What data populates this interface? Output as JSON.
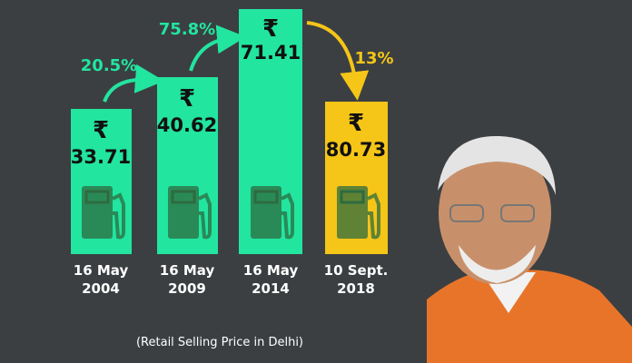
{
  "currency": "₹",
  "items": [
    {
      "price": "33.71",
      "date_line1": "16 May",
      "date_line2": "2004"
    },
    {
      "price": "40.62",
      "date_line1": "16 May",
      "date_line2": "2009"
    },
    {
      "price": "71.41",
      "date_line1": "16 May",
      "date_line2": "2014"
    },
    {
      "price": "80.73",
      "date_line1": "10 Sept.",
      "date_line2": "2018"
    }
  ],
  "changes": [
    "20.5%",
    "75.8%",
    "13%"
  ],
  "note": "(Retail Selling Price in Delhi)"
}
